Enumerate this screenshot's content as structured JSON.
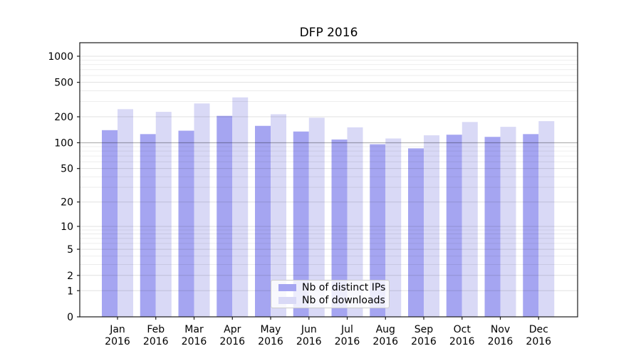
{
  "title": "DFP 2016",
  "legend": {
    "items": [
      {
        "label": "Nb of distinct IPs",
        "series": "distinct_ips"
      },
      {
        "label": "Nb of downloads",
        "series": "downloads"
      }
    ]
  },
  "colors": {
    "distinct_ips": "#a5a5f1",
    "downloads": "#d9d9f6",
    "grid_minor": "rgba(0,0,0,0.09)",
    "grid_major": "rgba(0,0,0,0.12)",
    "grid_hundred": "rgba(0,0,0,0.30)",
    "axis": "#1a1a1a",
    "text": "#000000"
  },
  "x_axis": {
    "months": [
      "Jan",
      "Feb",
      "Mar",
      "Apr",
      "May",
      "Jun",
      "Jul",
      "Aug",
      "Sep",
      "Oct",
      "Nov",
      "Dec"
    ],
    "year": "2016"
  },
  "chart_data": {
    "type": "bar",
    "title": "DFP 2016",
    "categories": [
      "Jan 2016",
      "Feb 2016",
      "Mar 2016",
      "Apr 2016",
      "May 2016",
      "Jun 2016",
      "Jul 2016",
      "Aug 2016",
      "Sep 2016",
      "Oct 2016",
      "Nov 2016",
      "Dec 2016"
    ],
    "series": [
      {
        "name": "Nb of distinct IPs",
        "key": "distinct_ips",
        "values": [
          140,
          126,
          138,
          205,
          157,
          135,
          109,
          96,
          86,
          124,
          117,
          126
        ]
      },
      {
        "name": "Nb of downloads",
        "key": "downloads",
        "values": [
          245,
          228,
          285,
          335,
          214,
          195,
          151,
          112,
          122,
          174,
          153,
          178
        ]
      }
    ],
    "xlabel": "",
    "ylabel": "",
    "yscale": "log1p",
    "ylim": [
      0,
      1450
    ],
    "y_ticks": [
      0,
      1,
      2,
      5,
      10,
      20,
      50,
      100,
      200,
      500,
      1000
    ],
    "y_minor_gridlines": [
      3,
      4,
      6,
      7,
      8,
      9,
      30,
      40,
      60,
      70,
      80,
      90,
      300,
      400,
      600,
      700,
      800,
      900
    ],
    "grid": true,
    "grid_above_bars": true,
    "legend_position": "lower center"
  }
}
